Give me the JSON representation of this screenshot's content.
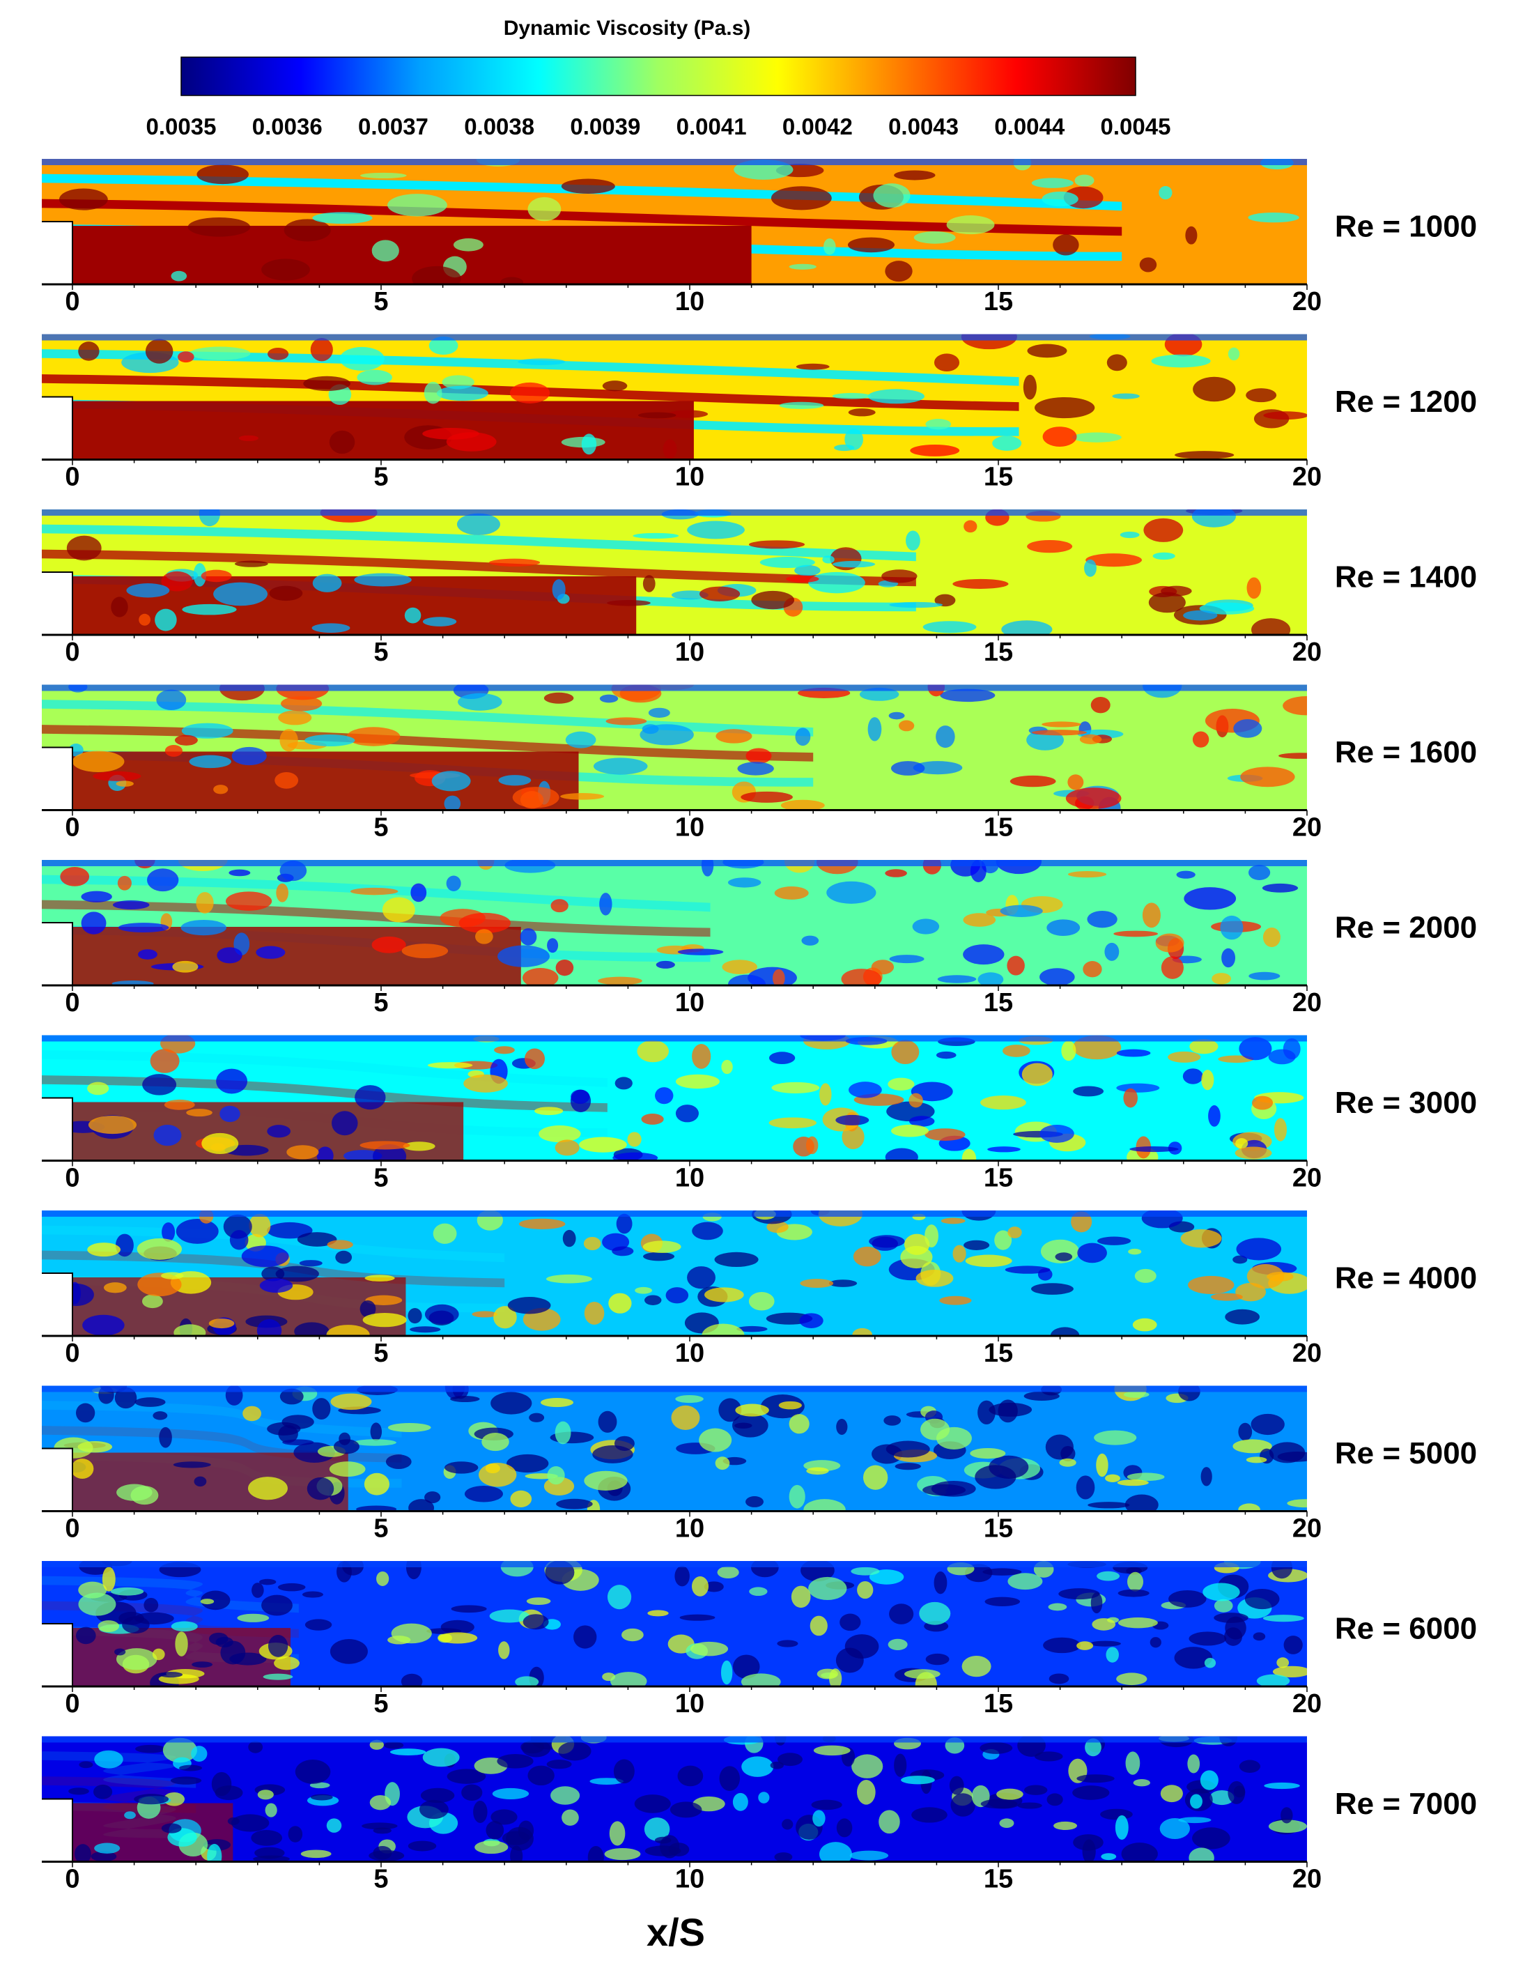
{
  "chart_data": {
    "type": "heatmap",
    "title": "",
    "xlabel": "x/S",
    "ylabel": "",
    "colorbar": {
      "title": "Dynamic Viscosity (Pa.s)",
      "ticks": [
        "0.0035",
        "0.0036",
        "0.0037",
        "0.0038",
        "0.0039",
        "0.0041",
        "0.0042",
        "0.0043",
        "0.0044",
        "0.0045"
      ],
      "range": [
        0.0035,
        0.0045
      ],
      "colormap": [
        "#000080",
        "#0000ff",
        "#00a0ff",
        "#00ffff",
        "#a0ff60",
        "#ffff00",
        "#ff8000",
        "#ff0000",
        "#800000"
      ]
    },
    "x_ticks": [
      "0",
      "5",
      "10",
      "15",
      "20"
    ],
    "xlim": [
      0,
      20
    ],
    "panels": [
      {
        "label": "Re = 1000",
        "re": 1000
      },
      {
        "label": "Re = 1200",
        "re": 1200
      },
      {
        "label": "Re = 1400",
        "re": 1400
      },
      {
        "label": "Re = 1600",
        "re": 1600
      },
      {
        "label": "Re = 2000",
        "re": 2000
      },
      {
        "label": "Re = 3000",
        "re": 3000
      },
      {
        "label": "Re = 4000",
        "re": 4000
      },
      {
        "label": "Re = 5000",
        "re": 5000
      },
      {
        "label": "Re = 6000",
        "re": 6000
      },
      {
        "label": "Re = 7000",
        "re": 7000
      }
    ]
  }
}
